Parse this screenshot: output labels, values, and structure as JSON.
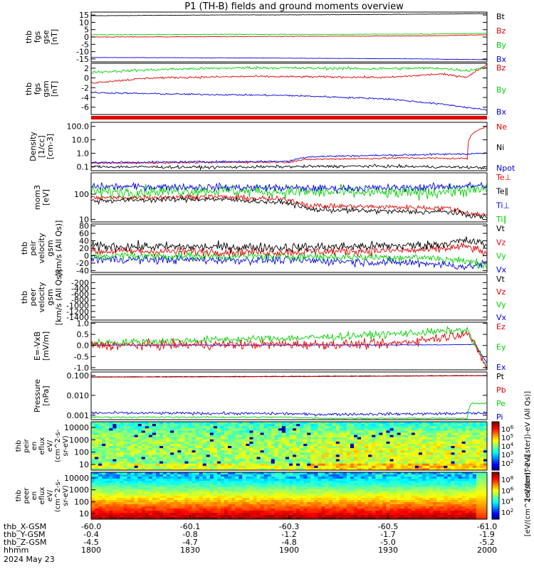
{
  "title": "P1 (TH-B) fields and ground moments overview",
  "colors": {
    "black": "#000000",
    "red": "#e00000",
    "green": "#00d000",
    "blue": "#0000e0"
  },
  "chart_data": [
    {
      "type": "line",
      "panel": "fgs",
      "ylabel": [
        "thb",
        "fgs",
        "gse",
        "[nT]"
      ],
      "ylim": [
        -17,
        17
      ],
      "yticks": [
        "15",
        "10",
        "5",
        "0",
        "-5",
        "-10",
        "-15"
      ],
      "ytick_values": [
        15,
        10,
        5,
        0,
        -5,
        -10,
        -15
      ],
      "legend": [
        {
          "text": "Bt",
          "color": "black"
        },
        {
          "text": "Bz",
          "color": "red"
        },
        {
          "text": "By",
          "color": "green"
        },
        {
          "text": "Bx",
          "color": "blue"
        }
      ],
      "series": [
        {
          "name": "Bt",
          "color": "black",
          "x": [
            0,
            0.3,
            0.6,
            0.85,
            1
          ],
          "values": [
            14.5,
            15.0,
            15.2,
            15.6,
            16.0
          ],
          "noise": 0.1
        },
        {
          "name": "Bz",
          "color": "red",
          "x": [
            0,
            0.3,
            0.6,
            0.85,
            1
          ],
          "values": [
            0.0,
            0.2,
            0.5,
            0.8,
            1.5
          ],
          "noise": 0.15
        },
        {
          "name": "By",
          "color": "green",
          "x": [
            0,
            0.3,
            0.6,
            0.85,
            1
          ],
          "values": [
            1.5,
            1.8,
            1.8,
            2.0,
            2.5
          ],
          "noise": 0.15
        },
        {
          "name": "Bx",
          "color": "blue",
          "x": [
            0,
            0.3,
            0.6,
            0.85,
            1
          ],
          "values": [
            -14.0,
            -14.2,
            -14.6,
            -15.0,
            -15.5
          ],
          "noise": 0.1
        }
      ]
    },
    {
      "type": "line",
      "panel": "fgs_gsm",
      "ylabel": [
        "thb",
        "fgs",
        "gsm",
        "[nT]"
      ],
      "ylim": [
        -7.5,
        3
      ],
      "yticks": [
        "2",
        "0",
        "-2",
        "-4",
        "-6"
      ],
      "ytick_values": [
        2,
        0,
        -2,
        -4,
        -6
      ],
      "legend": [
        {
          "text": "Bz",
          "color": "red"
        },
        {
          "text": "By",
          "color": "green"
        },
        {
          "text": "Bx",
          "color": "blue"
        }
      ],
      "series": [
        {
          "name": "Bz",
          "color": "red",
          "x": [
            0,
            0.15,
            0.4,
            0.6,
            0.75,
            0.88,
            0.95,
            1
          ],
          "values": [
            -1.0,
            0.0,
            0.3,
            0.2,
            0.1,
            0.8,
            0.2,
            2.8
          ],
          "noise": 0.15
        },
        {
          "name": "By",
          "color": "green",
          "x": [
            0,
            0.2,
            0.4,
            0.7,
            0.88,
            0.95,
            1
          ],
          "values": [
            1.2,
            1.8,
            2.1,
            1.9,
            2.0,
            1.5,
            2.2
          ],
          "noise": 0.2
        },
        {
          "name": "Bx",
          "color": "blue",
          "x": [
            0,
            0.2,
            0.5,
            0.75,
            0.9,
            1
          ],
          "values": [
            -3.0,
            -3.3,
            -3.6,
            -4.3,
            -5.5,
            -6.6
          ],
          "noise": 0.12
        }
      ]
    },
    {
      "type": "line",
      "panel": "density",
      "ylabel": [
        "Density",
        "[1/cc]",
        "[cm-3]"
      ],
      "scale": "log",
      "ylim": [
        0.05,
        200
      ],
      "yticks": [
        "100.0",
        "10.0",
        "1.0",
        "0.1"
      ],
      "ytick_values": [
        100,
        10,
        1,
        0.1
      ],
      "legend": [
        {
          "text": "Ne",
          "color": "red"
        },
        {
          "text": "Ni",
          "color": "black"
        },
        {
          "text": "Npot",
          "color": "blue"
        }
      ],
      "series": [
        {
          "name": "Ni",
          "color": "black",
          "x": [
            0,
            0.3,
            0.5,
            0.7,
            0.95,
            1
          ],
          "values": [
            0.1,
            0.09,
            0.1,
            0.11,
            0.09,
            0.08
          ],
          "noise": 0.15
        },
        {
          "name": "Ne",
          "color": "red",
          "x": [
            0,
            0.2,
            0.5,
            0.55,
            0.8,
            0.95,
            1
          ],
          "values": [
            0.18,
            0.2,
            0.22,
            0.35,
            0.45,
            0.4,
            100
          ],
          "noise": 0.1
        },
        {
          "name": "Npot",
          "color": "blue",
          "x": [
            0,
            0.2,
            0.5,
            0.55,
            0.8,
            0.95,
            1
          ],
          "values": [
            0.2,
            0.22,
            0.25,
            0.55,
            0.75,
            0.9,
            1.0
          ],
          "noise": 0.1
        }
      ]
    },
    {
      "type": "line",
      "panel": "temperature",
      "ylabel": [
        "mom3",
        "[eV]"
      ],
      "scale": "log",
      "ylim": [
        8,
        700
      ],
      "yticks": [
        "100",
        "10"
      ],
      "ytick_values": [
        100,
        10
      ],
      "legend": [
        {
          "text": "Te⊥",
          "color": "red"
        },
        {
          "text": "Te∥",
          "color": "black"
        },
        {
          "text": "Ti⊥",
          "color": "blue"
        },
        {
          "text": "Ti∥",
          "color": "green"
        }
      ],
      "series": [
        {
          "name": "Ti∥",
          "color": "green",
          "x": [
            0,
            0.3,
            0.6,
            0.8,
            1
          ],
          "values": [
            120,
            140,
            120,
            110,
            150
          ],
          "noise": 0.35
        },
        {
          "name": "Ti⊥",
          "color": "blue",
          "x": [
            0,
            0.3,
            0.6,
            0.8,
            1
          ],
          "values": [
            200,
            190,
            170,
            180,
            220
          ],
          "noise": 0.2
        },
        {
          "name": "Te⊥",
          "color": "red",
          "x": [
            0,
            0.3,
            0.5,
            0.55,
            0.8,
            0.9,
            0.95,
            1
          ],
          "values": [
            70,
            80,
            60,
            35,
            30,
            28,
            18,
            15
          ],
          "noise": 0.15
        },
        {
          "name": "Te∥",
          "color": "black",
          "x": [
            0,
            0.3,
            0.5,
            0.55,
            0.8,
            0.9,
            0.95,
            1
          ],
          "values": [
            55,
            65,
            45,
            25,
            20,
            20,
            15,
            12
          ],
          "noise": 0.15
        }
      ]
    },
    {
      "type": "line",
      "panel": "peir_velocity",
      "ylabel": [
        "thb",
        "peir",
        "velocity",
        "gsm",
        "[km/s (All Qs)]"
      ],
      "ylim": [
        -45,
        85
      ],
      "yticks": [
        "80",
        "60",
        "40",
        "20",
        "0",
        "-20",
        "-40"
      ],
      "ytick_values": [
        80,
        60,
        40,
        20,
        0,
        -20,
        -40
      ],
      "legend": [
        {
          "text": "Vt",
          "color": "black"
        },
        {
          "text": "Vz",
          "color": "red"
        },
        {
          "text": "Vy",
          "color": "green"
        },
        {
          "text": "Vx",
          "color": "blue"
        }
      ],
      "series": [
        {
          "name": "Vx",
          "color": "blue",
          "x": [
            0,
            0.5,
            0.85,
            0.95,
            1
          ],
          "values": [
            -10,
            -12,
            -20,
            -30,
            -20
          ],
          "noise": 8
        },
        {
          "name": "Vy",
          "color": "green",
          "x": [
            0,
            0.5,
            0.85,
            0.95,
            1
          ],
          "values": [
            0,
            -2,
            -5,
            -15,
            -25
          ],
          "noise": 8
        },
        {
          "name": "Vz",
          "color": "red",
          "x": [
            0,
            0.5,
            0.85,
            0.95,
            1
          ],
          "values": [
            12,
            10,
            15,
            25,
            5
          ],
          "noise": 8
        },
        {
          "name": "Vt",
          "color": "black",
          "x": [
            0,
            0.5,
            0.85,
            0.95,
            1
          ],
          "values": [
            25,
            22,
            28,
            40,
            30
          ],
          "noise": 9
        }
      ]
    },
    {
      "type": "line",
      "panel": "peer_velocity",
      "ylabel": [
        "thb",
        "peer",
        "velocity",
        "gsm",
        "[km/s (All Qs)]"
      ],
      "ylim": [
        -1500,
        80
      ],
      "yticks": [
        "-200",
        "-400",
        "-600",
        "-800",
        "-1000",
        "-1200",
        "-1400"
      ],
      "ytick_values": [
        -200,
        -400,
        -600,
        -800,
        -1000,
        -1200,
        -1400
      ],
      "legend": [
        {
          "text": "Vt",
          "color": "black"
        },
        {
          "text": "Vz",
          "color": "red"
        },
        {
          "text": "Vy",
          "color": "green"
        },
        {
          "text": "Vx",
          "color": "blue"
        }
      ],
      "series": []
    },
    {
      "type": "line",
      "panel": "efield",
      "ylabel": [
        "E=-VxB",
        "[mV/m]"
      ],
      "ylim": [
        -1.1,
        1.05
      ],
      "yticks": [
        "1.0",
        "0.5",
        "0.0",
        "-0.5",
        "-1.0"
      ],
      "ytick_values": [
        1.0,
        0.5,
        0.0,
        -0.5,
        -1.0
      ],
      "legend": [
        {
          "text": "Ez",
          "color": "red"
        },
        {
          "text": "Ey",
          "color": "green"
        },
        {
          "text": "Ex",
          "color": "blue"
        }
      ],
      "series": [
        {
          "name": "Ex",
          "color": "blue",
          "x": [
            0,
            0.5,
            0.9,
            0.97,
            1
          ],
          "values": [
            0.02,
            0.02,
            0.03,
            0.05,
            -0.8
          ],
          "noise": 0.01
        },
        {
          "name": "Ey",
          "color": "green",
          "x": [
            0,
            0.3,
            0.55,
            0.8,
            0.95,
            1
          ],
          "values": [
            0.1,
            0.25,
            0.35,
            0.55,
            0.7,
            -1.0
          ],
          "noise": 0.12
        },
        {
          "name": "Ez",
          "color": "red",
          "x": [
            0,
            0.5,
            0.75,
            0.9,
            0.95,
            1
          ],
          "values": [
            0.0,
            0.05,
            0.05,
            0.4,
            0.6,
            -1.0
          ],
          "noise": 0.15
        }
      ]
    },
    {
      "type": "line",
      "panel": "pressure",
      "ylabel": [
        "Pressure",
        "[nPa]"
      ],
      "scale": "log",
      "ylim": [
        0.0006,
        0.15
      ],
      "yticks": [
        "0.100",
        "0.010",
        "0.001"
      ],
      "ytick_values": [
        0.1,
        0.01,
        0.001
      ],
      "legend": [
        {
          "text": "Pt",
          "color": "black"
        },
        {
          "text": "Pb",
          "color": "red"
        },
        {
          "text": "Pe",
          "color": "green"
        },
        {
          "text": "Pi",
          "color": "blue"
        }
      ],
      "series": [
        {
          "name": "Pt",
          "color": "black",
          "x": [
            0,
            0.5,
            1
          ],
          "values": [
            0.085,
            0.09,
            0.1
          ],
          "noise": 0.02
        },
        {
          "name": "Pb",
          "color": "red",
          "x": [
            0,
            0.5,
            1
          ],
          "values": [
            0.082,
            0.087,
            0.097
          ],
          "noise": 0.01
        },
        {
          "name": "Pi",
          "color": "blue",
          "x": [
            0,
            0.5,
            0.55,
            0.9,
            1
          ],
          "values": [
            0.0013,
            0.0012,
            0.0011,
            0.0012,
            0.0013
          ],
          "noise": 0.1
        },
        {
          "name": "Pe",
          "color": "green",
          "x": [
            0,
            0.5,
            0.6,
            0.95,
            0.96,
            1
          ],
          "values": [
            0.0008,
            0.0008,
            0.0007,
            0.0007,
            0.004,
            0.004
          ],
          "noise": 0.05
        }
      ]
    },
    {
      "type": "heatmap",
      "panel": "peir_eflux",
      "ylabel": [
        "thb",
        "peir",
        "en",
        "eflux",
        "eV/",
        "(cm^2-s-",
        "sr-eV)"
      ],
      "scale": "log",
      "yticks": [
        "10000",
        "1000",
        "100",
        "10"
      ],
      "colorbar_ticks": [
        "10^6",
        "10^5",
        "10^4",
        "10^3",
        "10^2"
      ],
      "colorbar_label": "[eV/(cm^2-s[ster])-eV (All Qs)]"
    },
    {
      "type": "heatmap",
      "panel": "peer_eflux",
      "ylabel": [
        "thb",
        "peer",
        "en",
        "eflux",
        "eV/",
        "(cm^2-s-",
        "sr-eV)"
      ],
      "scale": "log",
      "yticks": [
        "10000",
        "1000",
        "100",
        "10"
      ],
      "colorbar_ticks": [
        "10^8",
        "10^6",
        "10^4",
        "10^2"
      ],
      "colorbar_label": "[eV/(cm^2-s[ster])-eV]"
    }
  ],
  "xaxis": {
    "tick_labels": [
      "-60.0",
      "-60.1",
      "-60.3",
      "-60.5",
      "-61.0"
    ],
    "rows": [
      {
        "label": "thb_X-GSM",
        "values": [
          "-60.0",
          "-60.1",
          "-60.3",
          "-60.5",
          "-61.0"
        ]
      },
      {
        "label": "thb_Y-GSM",
        "values": [
          "-0.4",
          "-0.8",
          "-1.2",
          "-1.7",
          "-1.9"
        ]
      },
      {
        "label": "thb_Z-GSM",
        "values": [
          "-4.5",
          "-4.7",
          "-4.8",
          "-5.0",
          "-5.2"
        ]
      },
      {
        "label": "hhmm",
        "values": [
          "1800",
          "1830",
          "1900",
          "1930",
          "2000"
        ]
      }
    ],
    "date": "2024 May 23"
  }
}
